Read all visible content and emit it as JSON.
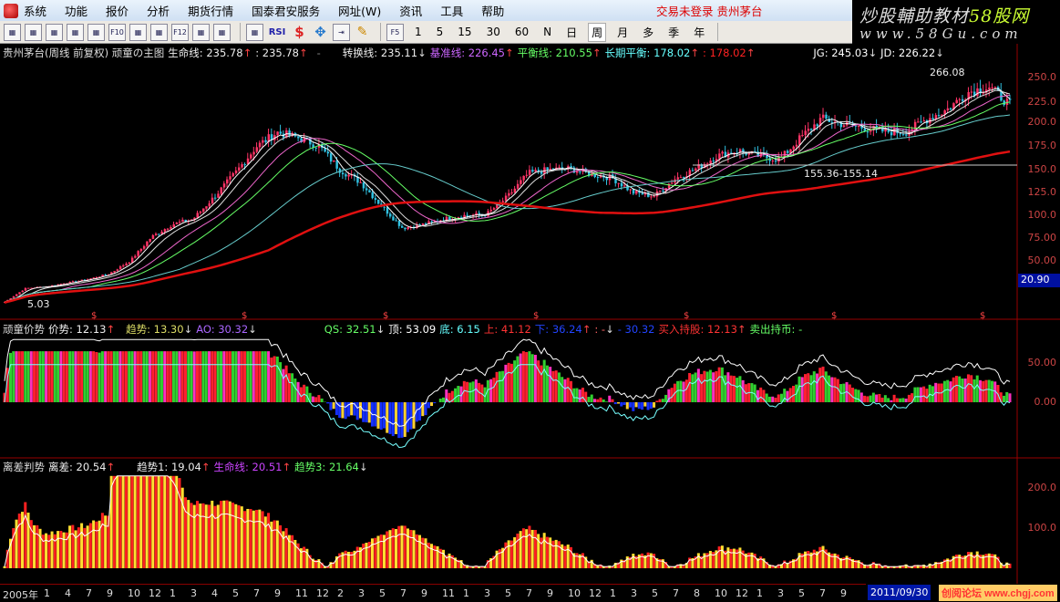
{
  "menu": {
    "items": [
      "系统",
      "功能",
      "报价",
      "分析",
      "期货行情",
      "国泰君安服务",
      "网址(W)",
      "资讯",
      "工具",
      "帮助"
    ],
    "status": "交易未登录  贵州茅台"
  },
  "toolbar": {
    "icons": [
      "kline-icon",
      "table-icon",
      "line-icon",
      "bars-icon",
      "report-icon",
      "f10-icon",
      "note-icon",
      "list-icon",
      "f12-icon",
      "formula-icon",
      "zoom-icon",
      "wave-icon",
      "rsi-icon",
      "money-icon",
      "move-icon",
      "export-icon",
      "pencil-icon"
    ],
    "rsi": "RSI",
    "f5": "F5",
    "periods": [
      "1",
      "5",
      "15",
      "30",
      "60",
      "N",
      "日",
      "周",
      "月",
      "多",
      "季",
      "年"
    ],
    "selected_period": "周"
  },
  "watermark": {
    "line1": "炒股輔助教材",
    "line1b": "58股网",
    "line2": "www.58Gu.com"
  },
  "main": {
    "title": "贵州茅台(周线 前复权) 顽童の主图",
    "items": [
      {
        "t": "生命线: 235.78",
        "a": "↑",
        "c": "#eee"
      },
      {
        "t": ": 235.78",
        "a": "↑",
        "c": "#eee"
      },
      {
        "t": "-",
        "a": "",
        "c": "#888"
      },
      {
        "t": "转换线: 235.11",
        "a": "↓",
        "c": "#eee"
      },
      {
        "t": "基准线: 226.45",
        "a": "↑",
        "c": "#c6f"
      },
      {
        "t": "平衡线: 210.55",
        "a": "↑",
        "c": "#6f6"
      },
      {
        "t": "长期平衡: 178.02",
        "a": "↑",
        "c": "#6ff"
      },
      {
        "t": ": 178.02",
        "a": "↑",
        "c": "#f22"
      },
      {
        "t": "JG: 245.03",
        "a": "↓",
        "c": "#fff"
      },
      {
        "t": "JD: 226.22",
        "a": "↓",
        "c": "#fff"
      }
    ],
    "annotations": {
      "high": "266.08",
      "low": "5.03",
      "range": "155.36-155.14"
    },
    "yticks": [
      "250.0",
      "225.0",
      "200.0",
      "175.0",
      "150.0",
      "125.0",
      "100.0",
      "75.00",
      "50.00"
    ],
    "cursor_price": "20.90"
  },
  "panel2": {
    "title": "顽童价势",
    "items": [
      {
        "t": "价势: 12.13",
        "a": "↑",
        "c": "#eee"
      },
      {
        "t": "趋势: 13.30",
        "a": "↓",
        "c": "#dd6"
      },
      {
        "t": "AO: 30.32",
        "a": "↓",
        "c": "#a6f"
      },
      {
        "t": "QS: 32.51",
        "a": "↓",
        "c": "#6f6"
      },
      {
        "t": "顶: 53.09",
        "a": "",
        "c": "#fff"
      },
      {
        "t": "底: 6.15",
        "a": "",
        "c": "#6ff"
      },
      {
        "t": "上: 41.12",
        "a": "",
        "c": "#f33"
      },
      {
        "t": "下: 36.24",
        "a": "↑",
        "c": "#24f"
      },
      {
        "t": ": -",
        "a": "↓",
        "c": "#f66"
      },
      {
        "t": "- 30.32",
        "a": "",
        "c": "#24f"
      },
      {
        "t": "买入持股: 12.13",
        "a": "↑",
        "c": "#f33"
      },
      {
        "t": "卖出持币: -",
        "a": "",
        "c": "#6f6"
      }
    ],
    "yticks": [
      "50.00",
      "0.00"
    ]
  },
  "panel3": {
    "title": "离差判势",
    "items": [
      {
        "t": "离差: 20.54",
        "a": "↑",
        "c": "#eee"
      },
      {
        "t": "趋势1: 19.04",
        "a": "↑",
        "c": "#eee"
      },
      {
        "t": "生命线: 20.51",
        "a": "↑",
        "c": "#c4f"
      },
      {
        "t": "趋势3: 21.64",
        "a": "↓",
        "c": "#6f6"
      }
    ],
    "yticks": [
      "200.0",
      "100.0"
    ]
  },
  "xaxis": {
    "labels": [
      "2005年",
      "1",
      "4",
      "7",
      "9",
      "10",
      "12",
      "1",
      "3",
      "4",
      "5",
      "7",
      "9",
      "11",
      "12",
      "2",
      "3",
      "5",
      "7",
      "9",
      "11",
      "1",
      "3",
      "5",
      "7",
      "9",
      "10",
      "12",
      "1",
      "3",
      "5",
      "7",
      "8",
      "10",
      "12",
      "1",
      "3",
      "5",
      "7",
      "9"
    ],
    "current_date": "2011/09/30",
    "corner_watermark": "创阅论坛 www.chgj.com"
  },
  "chart_data": {
    "type": "candlestick",
    "period": "weekly",
    "ylim": [
      0,
      265
    ],
    "approx_close_path": [
      5,
      20,
      22,
      26,
      30,
      36,
      50,
      76,
      90,
      96,
      120,
      146,
      175,
      191,
      185,
      176,
      150,
      136,
      110,
      86,
      90,
      96,
      100,
      101,
      120,
      146,
      150,
      151,
      145,
      141,
      125,
      121,
      140,
      151,
      165,
      171,
      165,
      161,
      185,
      206,
      200,
      196,
      192,
      191,
      205,
      216,
      235,
      241,
      221
    ],
    "colors": {
      "up": "#ff3366",
      "down": "#30c0e0",
      "ma_long": "#e01010"
    }
  }
}
